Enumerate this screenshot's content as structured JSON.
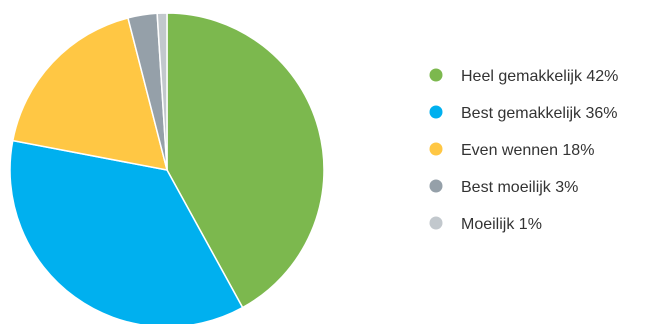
{
  "chart_data": {
    "type": "pie",
    "title": "",
    "legend_position": "right",
    "slices": [
      {
        "label": "Heel gemakkelijk 42%",
        "value": 42,
        "color": "#7cb84e"
      },
      {
        "label": "Best gemakkelijk 36%",
        "value": 36,
        "color": "#00b0ef"
      },
      {
        "label": "Even wennen 18%",
        "value": 18,
        "color": "#ffc744"
      },
      {
        "label": "Best moeilijk 3%",
        "value": 3,
        "color": "#95a0a9"
      },
      {
        "label": "Moeilijk 1%",
        "value": 1,
        "color": "#c2c8cd"
      }
    ]
  }
}
